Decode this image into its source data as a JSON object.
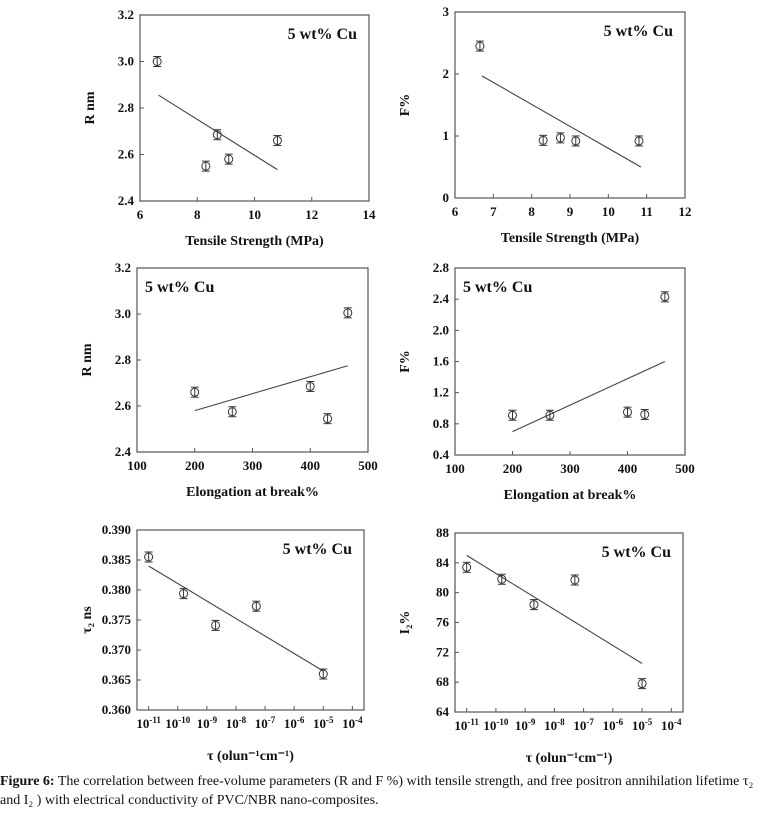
{
  "caption": {
    "label": "Figure 6:",
    "text": " The correlation between free-volume parameters (R and F %) with tensile strength, and free positron annihilation lifetime τ₂ and I₂ ) with electrical conductivity of PVC/NBR nano-composites."
  },
  "chart_data": [
    {
      "type": "scatter",
      "title": "",
      "legend": "5 wt% Cu",
      "legend_placement": "top-right",
      "xlabel": "Tensile Strength (MPa)",
      "ylabel": "R nm",
      "xlim": [
        6,
        14
      ],
      "ylim": [
        2.4,
        3.2
      ],
      "xticks": [
        6,
        8,
        10,
        12,
        14
      ],
      "yticks": [
        "2.4",
        "2.6",
        "2.8",
        "3.0",
        "3.2"
      ],
      "xscale": "linear",
      "points": [
        {
          "x": 6.6,
          "y": 3.0,
          "err": 0.008
        },
        {
          "x": 8.3,
          "y": 2.55,
          "err": 0.015
        },
        {
          "x": 8.7,
          "y": 2.685,
          "err": 0.015
        },
        {
          "x": 9.1,
          "y": 2.58,
          "err": 0.008
        },
        {
          "x": 10.8,
          "y": 2.66,
          "err": 0.015
        }
      ],
      "fit": [
        [
          6.65,
          2.855
        ],
        [
          10.8,
          2.535
        ]
      ]
    },
    {
      "type": "scatter",
      "title": "",
      "legend": "5 wt% Cu",
      "legend_placement": "top-right",
      "xlabel": "Tensile Strength (MPa)",
      "ylabel": "F%",
      "xlim": [
        6,
        12
      ],
      "ylim": [
        0,
        3
      ],
      "xticks": [
        6,
        7,
        8,
        9,
        10,
        11,
        12
      ],
      "yticks": [
        "0",
        "1",
        "2",
        "3"
      ],
      "xscale": "linear",
      "points": [
        {
          "x": 6.65,
          "y": 2.45,
          "err": 0.05
        },
        {
          "x": 8.3,
          "y": 0.93,
          "err": 0.05
        },
        {
          "x": 8.75,
          "y": 0.97,
          "err": 0.04
        },
        {
          "x": 9.15,
          "y": 0.92,
          "err": 0.04
        },
        {
          "x": 10.8,
          "y": 0.92,
          "err": 0.05
        }
      ],
      "fit": [
        [
          6.7,
          1.97
        ],
        [
          10.85,
          0.5
        ]
      ]
    },
    {
      "type": "scatter",
      "title": "",
      "legend": "5 wt% Cu",
      "legend_placement": "top-left",
      "xlabel": "Elongation at break%",
      "ylabel": "R nm",
      "xlim": [
        100,
        500
      ],
      "ylim": [
        2.4,
        3.2
      ],
      "xticks": [
        100,
        200,
        300,
        400,
        500
      ],
      "yticks": [
        "2.4",
        "2.6",
        "2.8",
        "3.0",
        "3.2"
      ],
      "xscale": "linear",
      "points": [
        {
          "x": 200,
          "y": 2.66,
          "err": 0.015
        },
        {
          "x": 265,
          "y": 2.575,
          "err": 0.008
        },
        {
          "x": 400,
          "y": 2.685,
          "err": 0.015
        },
        {
          "x": 430,
          "y": 2.545,
          "err": 0.015
        },
        {
          "x": 465,
          "y": 3.005,
          "err": 0.008
        }
      ],
      "fit": [
        [
          200,
          2.58
        ],
        [
          465,
          2.775
        ]
      ]
    },
    {
      "type": "scatter",
      "title": "",
      "legend": "5 wt% Cu",
      "legend_placement": "top-left",
      "xlabel": "Elongation at break%",
      "ylabel": "F%",
      "xlim": [
        100,
        500
      ],
      "ylim": [
        0.4,
        2.8
      ],
      "xticks": [
        100,
        200,
        300,
        400,
        500
      ],
      "yticks": [
        "0.4",
        "0.8",
        "1.2",
        "1.6",
        "2.0",
        "2.4",
        "2.8"
      ],
      "xscale": "linear",
      "points": [
        {
          "x": 200,
          "y": 0.91,
          "err": 0.03
        },
        {
          "x": 265,
          "y": 0.91,
          "err": 0.03
        },
        {
          "x": 400,
          "y": 0.95,
          "err": 0.03
        },
        {
          "x": 430,
          "y": 0.92,
          "err": 0.03
        },
        {
          "x": 465,
          "y": 2.43,
          "err": 0.05
        }
      ],
      "fit": [
        [
          200,
          0.7
        ],
        [
          465,
          1.6
        ]
      ]
    },
    {
      "type": "scatter",
      "title": "",
      "legend": "5 wt% Cu",
      "legend_placement": "top-right",
      "xlabel": "τ  (olun⁻¹cm⁻¹)",
      "ylabel": "τ₂ ns",
      "xlim": [
        -11.4,
        -3.6
      ],
      "ylim": [
        0.36,
        0.39
      ],
      "xticks": [
        -11,
        -10,
        -9,
        -8,
        -7,
        -6,
        -5,
        -4
      ],
      "yticks": [
        "0.360",
        "0.365",
        "0.370",
        "0.375",
        "0.380",
        "0.385",
        "0.390"
      ],
      "xscale": "log10",
      "points": [
        {
          "x": -11,
          "y": 0.3855,
          "err": 0.0006
        },
        {
          "x": -9.8,
          "y": 0.3794,
          "err": 0.0003
        },
        {
          "x": -8.7,
          "y": 0.3741,
          "err": 0.0006
        },
        {
          "x": -7.3,
          "y": 0.3773,
          "err": 0.0006
        },
        {
          "x": -5.0,
          "y": 0.366,
          "err": 0.0003
        }
      ],
      "fit": [
        [
          -11,
          0.384
        ],
        [
          -5,
          0.3665
        ]
      ]
    },
    {
      "type": "scatter",
      "title": "",
      "legend": "5 wt% Cu",
      "legend_placement": "top-right",
      "xlabel": "τ  (olun⁻¹cm⁻¹)",
      "ylabel": "I₂%",
      "xlim": [
        -11.4,
        -3.6
      ],
      "ylim": [
        64,
        88
      ],
      "xticks": [
        -11,
        -10,
        -9,
        -8,
        -7,
        -6,
        -5,
        -4
      ],
      "yticks": [
        "64",
        "68",
        "72",
        "76",
        "80",
        "84",
        "88"
      ],
      "xscale": "log10",
      "points": [
        {
          "x": -11,
          "y": 83.4,
          "err": 0.3
        },
        {
          "x": -9.8,
          "y": 81.8,
          "err": 0.3
        },
        {
          "x": -8.7,
          "y": 78.4,
          "err": 0.3
        },
        {
          "x": -7.3,
          "y": 81.7,
          "err": 0.3
        },
        {
          "x": -5.0,
          "y": 67.8,
          "err": 0.3
        }
      ],
      "fit": [
        [
          -11,
          85
        ],
        [
          -5,
          70.5
        ]
      ]
    }
  ]
}
